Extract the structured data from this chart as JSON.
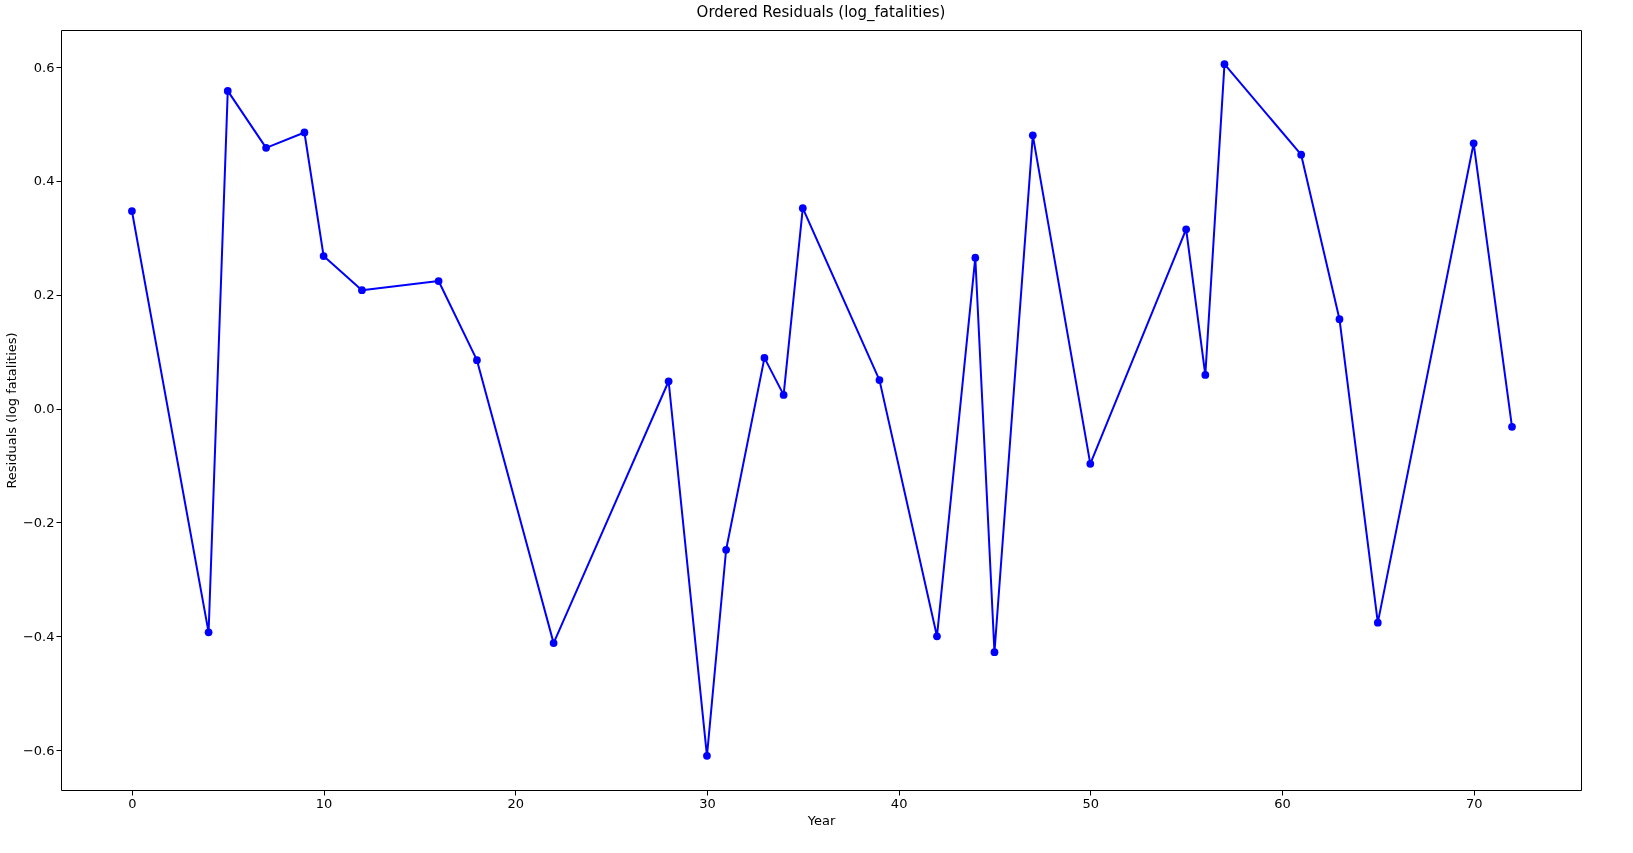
{
  "chart_data": {
    "type": "line",
    "title": "Ordered Residuals (log_fatalities)",
    "xlabel": "Year",
    "ylabel": "Residuals (log fatalities)",
    "x": [
      0,
      4,
      5,
      7,
      9,
      10,
      12,
      16,
      18,
      22,
      28,
      30,
      31,
      33,
      34,
      35,
      39,
      42,
      44,
      45,
      47,
      50,
      55,
      56,
      57,
      61,
      63,
      65,
      70,
      72
    ],
    "series": [
      {
        "color": "#0000ff",
        "values": [
          0.347,
          -0.393,
          0.558,
          0.458,
          0.485,
          0.268,
          0.208,
          0.224,
          0.085,
          -0.412,
          0.048,
          -0.61,
          -0.248,
          0.089,
          0.024,
          0.352,
          0.05,
          -0.4,
          0.265,
          -0.428,
          0.48,
          -0.097,
          0.315,
          0.059,
          0.605,
          0.446,
          0.157,
          -0.376,
          0.466,
          -0.032
        ]
      }
    ],
    "xlim": [
      -3.7,
      75.6
    ],
    "ylim": [
      -0.67,
      0.665
    ],
    "xticks": [
      0,
      10,
      20,
      30,
      40,
      50,
      60,
      70
    ],
    "yticks": [
      {
        "value": -0.6,
        "label": "−0.6"
      },
      {
        "value": -0.4,
        "label": "−0.4"
      },
      {
        "value": -0.2,
        "label": "−0.2"
      },
      {
        "value": 0,
        "label": "0.0"
      },
      {
        "value": 0.2,
        "label": "0.2"
      },
      {
        "value": 0.4,
        "label": "0.4"
      },
      {
        "value": 0.6,
        "label": "0.6"
      }
    ],
    "marker": "circle",
    "line_style": "solid",
    "grid": false
  }
}
